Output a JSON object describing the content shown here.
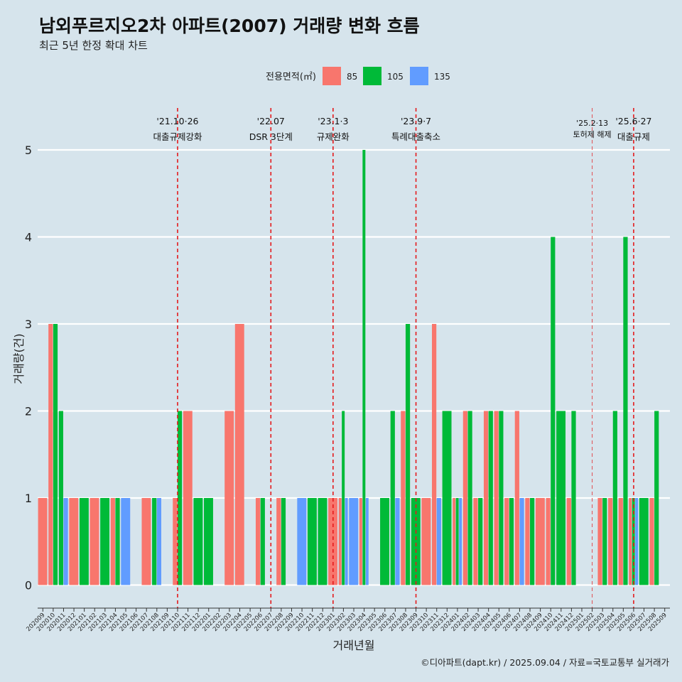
{
  "title": "남외푸르지오2차 아파트(2007) 거래량 변화 흐름",
  "subtitle": "최근 5년 한정 확대 차트",
  "credit": "©디아파트(dapt.kr) / 2025.09.04 / 자료=국토교통부 실거래가",
  "colors": {
    "background": "#d6e4ec",
    "s85": "#f8766d",
    "s105": "#00ba38",
    "s135": "#619cff",
    "event": "#e41a1c",
    "grid": "#ffffff"
  },
  "chart_data": {
    "type": "bar",
    "xlabel": "거래년월",
    "ylabel": "거래량(건)",
    "ylim": [
      0,
      5
    ],
    "yticks": [
      0,
      1,
      2,
      3,
      4,
      5
    ],
    "grid": "horizontal",
    "legend": {
      "title": "전용면적(㎡)",
      "position": "top",
      "entries": [
        "85",
        "105",
        "135"
      ]
    },
    "categories": [
      "202009",
      "202010",
      "202011",
      "202012",
      "202101",
      "202102",
      "202103",
      "202104",
      "202105",
      "202106",
      "202107",
      "202108",
      "202109",
      "202110",
      "202111",
      "202112",
      "202201",
      "202202",
      "202203",
      "202204",
      "202205",
      "202206",
      "202207",
      "202208",
      "202209",
      "202210",
      "202211",
      "202212",
      "202301",
      "202302",
      "202303",
      "202304",
      "202305",
      "202306",
      "202307",
      "202308",
      "202309",
      "202310",
      "202311",
      "202312",
      "202401",
      "202402",
      "202403",
      "202404",
      "202405",
      "202406",
      "202407",
      "202408",
      "202409",
      "202410",
      "202411",
      "202412",
      "202501",
      "202502",
      "202503",
      "202504",
      "202505",
      "202506",
      "202507",
      "202508",
      "202509"
    ],
    "series": [
      {
        "name": "85",
        "values": [
          1,
          3,
          0,
          1,
          0,
          1,
          0,
          1,
          0,
          0,
          1,
          0,
          0,
          1,
          2,
          0,
          0,
          0,
          2,
          3,
          0,
          1,
          0,
          1,
          0,
          0,
          0,
          0,
          1,
          1,
          0,
          1,
          0,
          0,
          0,
          2,
          0,
          1,
          3,
          0,
          1,
          2,
          1,
          2,
          2,
          1,
          2,
          1,
          1,
          1,
          0,
          1,
          0,
          0,
          1,
          1,
          1,
          1,
          0,
          1,
          0
        ]
      },
      {
        "name": "105",
        "values": [
          0,
          3,
          2,
          0,
          1,
          0,
          1,
          1,
          0,
          0,
          0,
          1,
          0,
          2,
          0,
          1,
          1,
          0,
          0,
          0,
          0,
          1,
          0,
          1,
          0,
          0,
          1,
          1,
          0,
          2,
          0,
          5,
          0,
          1,
          2,
          3,
          1,
          0,
          0,
          2,
          1,
          2,
          1,
          2,
          2,
          1,
          0,
          1,
          0,
          4,
          2,
          2,
          0,
          0,
          1,
          2,
          4,
          1,
          1,
          2,
          0
        ]
      },
      {
        "name": "135",
        "values": [
          0,
          0,
          1,
          0,
          0,
          0,
          0,
          0,
          1,
          0,
          0,
          1,
          0,
          0,
          0,
          0,
          0,
          0,
          0,
          0,
          0,
          0,
          0,
          0,
          0,
          1,
          0,
          0,
          0,
          1,
          1,
          1,
          0,
          0,
          1,
          0,
          0,
          0,
          1,
          0,
          1,
          0,
          0,
          0,
          0,
          0,
          1,
          0,
          0,
          0,
          0,
          0,
          0,
          0,
          0,
          0,
          0,
          1,
          0,
          0,
          0
        ]
      }
    ],
    "events": [
      {
        "x": "202110",
        "date": "'21.10·26",
        "label": "대출규제강화"
      },
      {
        "x": "202207",
        "date": "'22.07",
        "label": "DSR 3단계"
      },
      {
        "x": "202301",
        "date": "'23.1·3",
        "label": "규제완화"
      },
      {
        "x": "202309",
        "date": "'23.9·7",
        "label": "특례대출축소"
      },
      {
        "x": "202502",
        "date": "'25.2·13",
        "label": "토허제 해제"
      },
      {
        "x": "202506",
        "date": "'25.6·27",
        "label": "대출규제"
      }
    ]
  }
}
